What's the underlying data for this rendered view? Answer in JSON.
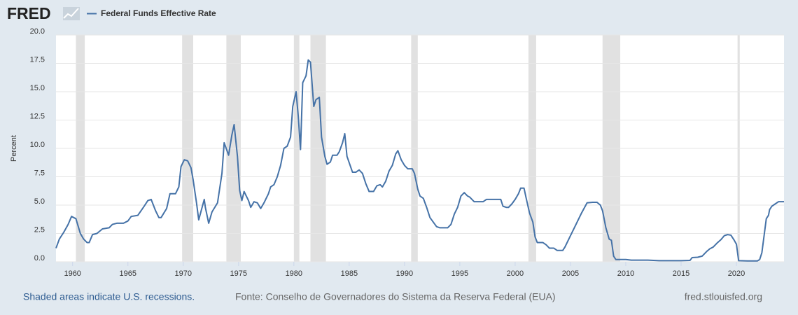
{
  "chart_data": {
    "type": "line",
    "logo": "FRED",
    "y_label": "Percent",
    "note": "Shaded areas indicate U.S. recessions.",
    "source": "Fonte: Conselho de Governadores do Sistema da Reserva Federal (EUA)",
    "url": "fred.stlouisfed.org",
    "recession_color": "#e1e1e1",
    "grid": true,
    "xlim": [
      1958.5,
      2024.3
    ],
    "xticks": [
      1960,
      1965,
      1970,
      1975,
      1980,
      1985,
      1990,
      1995,
      2000,
      2005,
      2010,
      2015,
      2020
    ],
    "ylim": [
      0,
      20
    ],
    "yticks": [
      {
        "value": 0,
        "label": "0.0"
      },
      2.5,
      {
        "value": 5,
        "label": "5.0"
      },
      7.5,
      {
        "value": 10,
        "label": "10.0"
      },
      12.5,
      {
        "value": 15,
        "label": "15.0"
      },
      17.5,
      {
        "value": 20,
        "label": "20.0"
      }
    ],
    "recessions": [
      [
        1960.3,
        1961.1
      ],
      [
        1969.9,
        1970.9
      ],
      [
        1973.9,
        1975.2
      ],
      [
        1980.0,
        1980.5
      ],
      [
        1981.5,
        1982.9
      ],
      [
        1990.6,
        1991.2
      ],
      [
        2001.2,
        2001.9
      ],
      [
        2007.9,
        2009.5
      ],
      [
        2020.1,
        2020.3
      ]
    ],
    "x": [
      1958.5,
      1958.8,
      1959.2,
      1959.6,
      1959.9,
      1960.3,
      1960.7,
      1961.0,
      1961.3,
      1961.5,
      1961.8,
      1962.2,
      1962.7,
      1963.3,
      1963.6,
      1964.0,
      1964.6,
      1965.0,
      1965.3,
      1965.9,
      1966.4,
      1966.8,
      1967.1,
      1967.5,
      1967.8,
      1968.0,
      1968.5,
      1968.8,
      1969.3,
      1969.6,
      1969.8,
      1970.1,
      1970.4,
      1970.7,
      1970.9,
      1971.2,
      1971.4,
      1971.9,
      1972.0,
      1972.3,
      1972.6,
      1973.1,
      1973.5,
      1973.7,
      1974.1,
      1974.4,
      1974.6,
      1974.9,
      1975.1,
      1975.3,
      1975.5,
      1975.9,
      1976.1,
      1976.4,
      1976.7,
      1977.0,
      1977.3,
      1977.7,
      1977.9,
      1978.2,
      1978.5,
      1978.8,
      1979.1,
      1979.4,
      1979.7,
      1979.9,
      1980.2,
      1980.4,
      1980.6,
      1980.8,
      1981.1,
      1981.3,
      1981.5,
      1981.8,
      1982.0,
      1982.3,
      1982.5,
      1982.8,
      1983.0,
      1983.3,
      1983.5,
      1983.9,
      1984.1,
      1984.4,
      1984.6,
      1984.8,
      1985.3,
      1985.6,
      1985.9,
      1986.2,
      1986.5,
      1986.8,
      1987.2,
      1987.5,
      1987.8,
      1988.0,
      1988.3,
      1988.6,
      1988.9,
      1989.2,
      1989.4,
      1989.7,
      1990.0,
      1990.3,
      1990.7,
      1990.9,
      1991.2,
      1991.4,
      1991.7,
      1992.0,
      1992.3,
      1992.6,
      1992.9,
      1993.2,
      1993.7,
      1993.9,
      1994.2,
      1994.5,
      1994.8,
      1995.1,
      1995.4,
      1995.7,
      1995.9,
      1996.3,
      1996.7,
      1997.1,
      1997.4,
      1997.8,
      1998.1,
      1998.4,
      1998.7,
      1998.9,
      1999.2,
      1999.4,
      1999.7,
      2000.0,
      2000.3,
      2000.5,
      2000.8,
      2001.0,
      2001.3,
      2001.6,
      2001.8,
      2002.0,
      2002.5,
      2002.8,
      2003.1,
      2003.5,
      2003.8,
      2004.3,
      2004.5,
      2005.0,
      2005.5,
      2006.0,
      2006.5,
      2007.0,
      2007.4,
      2007.7,
      2007.9,
      2008.2,
      2008.5,
      2008.7,
      2008.9,
      2009.1,
      2010.0,
      2010.5,
      2011.0,
      2012.0,
      2013.0,
      2014.0,
      2015.0,
      2015.8,
      2016.0,
      2016.5,
      2016.9,
      2017.3,
      2017.6,
      2017.9,
      2018.3,
      2018.6,
      2018.9,
      2019.2,
      2019.5,
      2019.8,
      2020.0,
      2020.2,
      2020.5,
      2021.0,
      2021.9,
      2022.1,
      2022.3,
      2022.5,
      2022.7,
      2022.9,
      2023.0,
      2023.2,
      2023.5,
      2023.8,
      2024.3
    ],
    "series": [
      {
        "name": "Federal Funds Effective Rate",
        "color": "#4572a7",
        "values": [
          1.2,
          2.0,
          2.6,
          3.3,
          4.0,
          3.8,
          2.5,
          2.0,
          1.7,
          1.7,
          2.4,
          2.5,
          2.9,
          3.0,
          3.3,
          3.4,
          3.4,
          3.6,
          4.0,
          4.1,
          4.8,
          5.4,
          5.5,
          4.5,
          3.9,
          3.9,
          4.7,
          6.0,
          6.0,
          6.6,
          8.4,
          9.0,
          8.9,
          8.3,
          7.2,
          5.2,
          3.7,
          5.5,
          4.8,
          3.4,
          4.4,
          5.2,
          7.8,
          10.5,
          9.4,
          11.2,
          12.1,
          9.3,
          6.3,
          5.4,
          6.2,
          5.4,
          4.8,
          5.3,
          5.2,
          4.7,
          5.2,
          6.0,
          6.6,
          6.8,
          7.5,
          8.5,
          10.0,
          10.2,
          11.0,
          13.7,
          15.0,
          12.8,
          9.9,
          15.8,
          16.4,
          17.8,
          17.6,
          13.7,
          14.3,
          14.5,
          11.0,
          9.3,
          8.6,
          8.8,
          9.4,
          9.4,
          9.7,
          10.5,
          11.3,
          9.3,
          7.9,
          7.9,
          8.1,
          7.8,
          6.9,
          6.2,
          6.2,
          6.7,
          6.8,
          6.6,
          7.1,
          8.0,
          8.5,
          9.5,
          9.8,
          9.0,
          8.5,
          8.2,
          8.2,
          7.8,
          6.4,
          5.8,
          5.6,
          4.8,
          3.9,
          3.5,
          3.1,
          3.0,
          3.0,
          3.0,
          3.3,
          4.2,
          4.8,
          5.8,
          6.1,
          5.8,
          5.7,
          5.3,
          5.3,
          5.3,
          5.5,
          5.5,
          5.5,
          5.5,
          5.5,
          4.9,
          4.8,
          4.8,
          5.1,
          5.5,
          6.0,
          6.5,
          6.5,
          5.6,
          4.3,
          3.5,
          2.2,
          1.7,
          1.7,
          1.5,
          1.2,
          1.2,
          1.0,
          1.0,
          1.3,
          2.3,
          3.3,
          4.3,
          5.2,
          5.25,
          5.25,
          5.0,
          4.5,
          3.0,
          2.0,
          1.9,
          0.5,
          0.2,
          0.2,
          0.15,
          0.15,
          0.15,
          0.1,
          0.1,
          0.1,
          0.12,
          0.37,
          0.4,
          0.5,
          0.9,
          1.15,
          1.3,
          1.7,
          1.95,
          2.3,
          2.4,
          2.35,
          1.9,
          1.55,
          0.1,
          0.09,
          0.08,
          0.08,
          0.2,
          0.8,
          2.3,
          3.8,
          4.1,
          4.6,
          4.9,
          5.1,
          5.3,
          5.3
        ]
      }
    ]
  }
}
